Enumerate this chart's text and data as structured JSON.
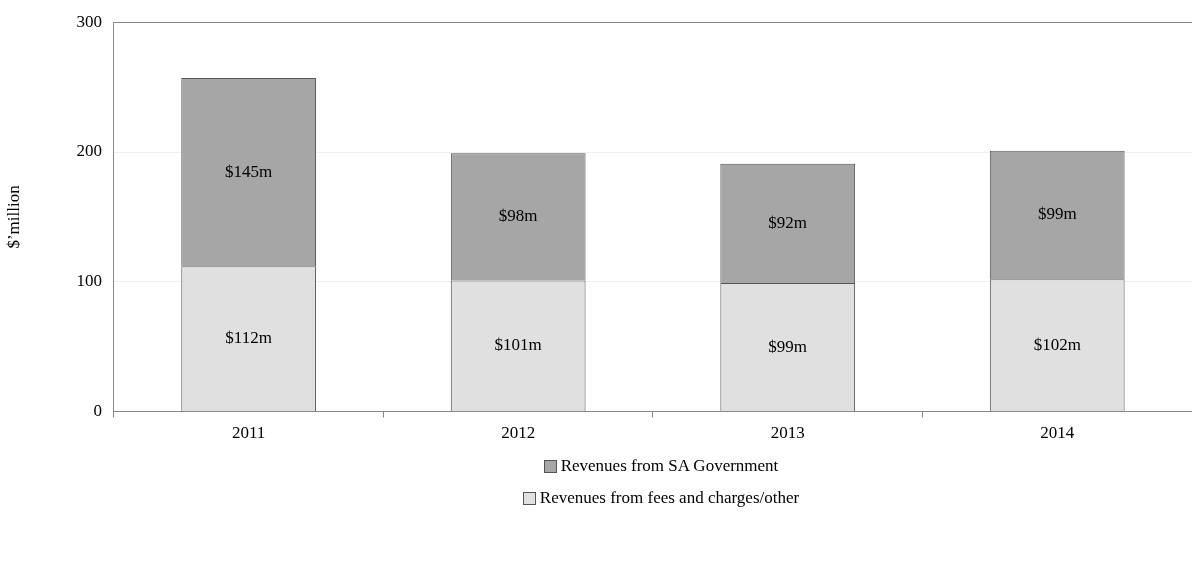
{
  "chart_data": {
    "type": "bar",
    "stacked": true,
    "ylabel": "$’million",
    "categories": [
      "2011",
      "2012",
      "2013",
      "2014"
    ],
    "series": [
      {
        "name": "Revenues from fees and charges/other",
        "color": "#e0e0e0",
        "values": [
          112,
          101,
          99,
          102
        ],
        "value_labels": [
          "$112m",
          "$101m",
          "$99m",
          "$102m"
        ]
      },
      {
        "name": "Revenues from SA Government",
        "color": "#a6a6a6",
        "values": [
          145,
          98,
          92,
          99
        ],
        "value_labels": [
          "$145m",
          "$98m",
          "$92m",
          "$99m"
        ]
      }
    ],
    "ylim": [
      0,
      300
    ],
    "yticks": [
      0,
      100,
      200,
      300
    ],
    "grid": "y",
    "legend": "bottom"
  }
}
